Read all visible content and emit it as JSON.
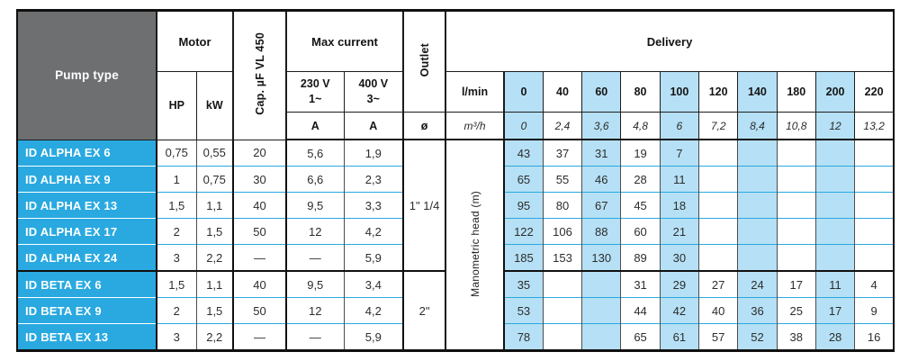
{
  "colors": {
    "cyan": "#29a9e0",
    "light_blue": "#b6e0f5",
    "header_gray": "#6e6f71",
    "border_black": "#101010"
  },
  "header": {
    "pump_type": "Pump type",
    "motor": "Motor",
    "hp": "HP",
    "kw": "kW",
    "cap": "Cap. µF VL 450",
    "max_current": "Max current",
    "v230_line1": "230 V",
    "v230_line2": "1~",
    "v400_line1": "400 V",
    "v400_line2": "3~",
    "amp": "A",
    "outlet": "Outlet",
    "diameter": "ø",
    "delivery": "Delivery",
    "lmin_label": "l/min",
    "m3h_label": "m³/h",
    "lmin_values": [
      "0",
      "40",
      "60",
      "80",
      "100",
      "120",
      "140",
      "180",
      "200",
      "220"
    ],
    "m3h_values": [
      "0",
      "2,4",
      "3,6",
      "4,8",
      "6",
      "7,2",
      "8,4",
      "10,8",
      "12",
      "13,2"
    ]
  },
  "manometric_label": "Manometric head (m)",
  "outlet_groups": [
    {
      "label": "1\" 1/4",
      "rows": 5
    },
    {
      "label": "2\"",
      "rows": 3
    }
  ],
  "rows": [
    {
      "name": "ID ALPHA EX 6",
      "hp": "0,75",
      "kw": "0,55",
      "cap": "20",
      "a230": "5,6",
      "a400": "1,9",
      "head": [
        "43",
        "37",
        "31",
        "19",
        "7",
        "",
        "",
        "",
        "",
        ""
      ]
    },
    {
      "name": "ID ALPHA EX 9",
      "hp": "1",
      "kw": "0,75",
      "cap": "30",
      "a230": "6,6",
      "a400": "2,3",
      "head": [
        "65",
        "55",
        "46",
        "28",
        "11",
        "",
        "",
        "",
        "",
        ""
      ]
    },
    {
      "name": "ID ALPHA EX 13",
      "hp": "1,5",
      "kw": "1,1",
      "cap": "40",
      "a230": "9,5",
      "a400": "3,3",
      "head": [
        "95",
        "80",
        "67",
        "45",
        "18",
        "",
        "",
        "",
        "",
        ""
      ]
    },
    {
      "name": "ID ALPHA EX 17",
      "hp": "2",
      "kw": "1,5",
      "cap": "50",
      "a230": "12",
      "a400": "4,2",
      "head": [
        "122",
        "106",
        "88",
        "60",
        "21",
        "",
        "",
        "",
        "",
        ""
      ]
    },
    {
      "name": "ID ALPHA EX 24",
      "hp": "3",
      "kw": "2,2",
      "cap": "—",
      "a230": "—",
      "a400": "5,9",
      "head": [
        "185",
        "153",
        "130",
        "89",
        "30",
        "",
        "",
        "",
        "",
        ""
      ]
    },
    {
      "name": "ID BETA EX 6",
      "hp": "1,5",
      "kw": "1,1",
      "cap": "40",
      "a230": "9,5",
      "a400": "3,4",
      "head": [
        "35",
        "",
        "",
        "31",
        "29",
        "27",
        "24",
        "17",
        "11",
        "4"
      ]
    },
    {
      "name": "ID BETA EX 9",
      "hp": "2",
      "kw": "1,5",
      "cap": "50",
      "a230": "12",
      "a400": "4,2",
      "head": [
        "53",
        "",
        "",
        "44",
        "42",
        "40",
        "36",
        "25",
        "17",
        "9"
      ]
    },
    {
      "name": "ID BETA EX 13",
      "hp": "3",
      "kw": "2,2",
      "cap": "—",
      "a230": "—",
      "a400": "5,9",
      "head": [
        "78",
        "",
        "",
        "65",
        "61",
        "57",
        "52",
        "38",
        "28",
        "16"
      ]
    }
  ]
}
